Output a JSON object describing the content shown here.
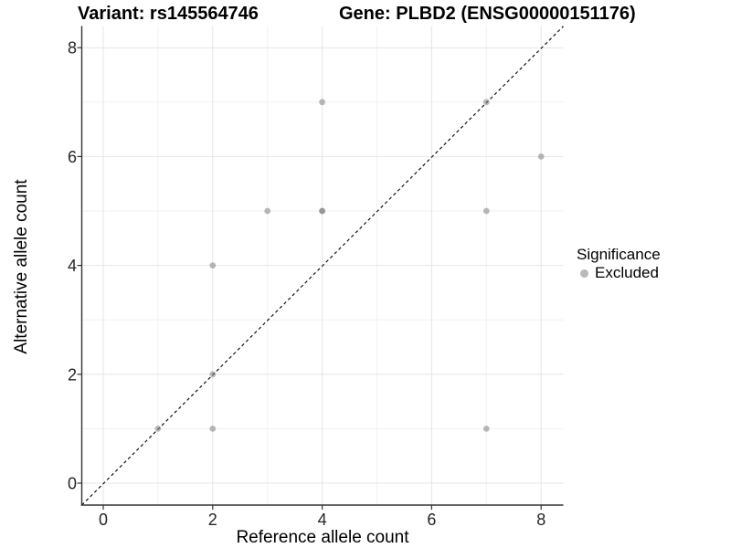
{
  "header": {
    "left_title": "Variant: rs145564746",
    "right_title": "Gene: PLBD2 (ENSG00000151176)"
  },
  "legend": {
    "title": "Significance",
    "items": [
      {
        "label": "Excluded",
        "color": "#7f7f7f",
        "alpha": 0.55
      }
    ]
  },
  "chart_data": {
    "type": "scatter",
    "title_left": "Variant: rs145564746",
    "title_right": "Gene: PLBD2 (ENSG00000151176)",
    "xlabel": "Reference allele count",
    "ylabel": "Alternative allele count",
    "xlim": [
      -0.4,
      8.4
    ],
    "ylim": [
      -0.4,
      8.4
    ],
    "x_ticks": [
      0,
      2,
      4,
      6,
      8
    ],
    "y_ticks": [
      0,
      2,
      4,
      6,
      8
    ],
    "x_minor_gridlines": [
      1,
      3,
      5,
      7
    ],
    "y_minor_gridlines": [
      1,
      3,
      5,
      7
    ],
    "grid": true,
    "legend_position": "right",
    "series": [
      {
        "name": "Excluded",
        "color": "#7f7f7f",
        "alpha": 0.55,
        "points": [
          {
            "x": 1,
            "y": 1,
            "n": 1
          },
          {
            "x": 2,
            "y": 1,
            "n": 1
          },
          {
            "x": 7,
            "y": 1,
            "n": 1
          },
          {
            "x": 2,
            "y": 2,
            "n": 1
          },
          {
            "x": 2,
            "y": 4,
            "n": 1
          },
          {
            "x": 3,
            "y": 5,
            "n": 1
          },
          {
            "x": 4,
            "y": 5,
            "n": 2
          },
          {
            "x": 7,
            "y": 5,
            "n": 1
          },
          {
            "x": 8,
            "y": 6,
            "n": 1
          },
          {
            "x": 4,
            "y": 7,
            "n": 1
          },
          {
            "x": 7,
            "y": 7,
            "n": 1
          }
        ]
      }
    ],
    "reference_line": {
      "type": "identity",
      "equation": "y = x",
      "style": "dashed",
      "color": "#000000"
    },
    "colors": {
      "grid_major": "#e6e6e6",
      "grid_minor": "#f1f1f1",
      "axis_line": "#333333",
      "tick_label": "#262626"
    }
  }
}
